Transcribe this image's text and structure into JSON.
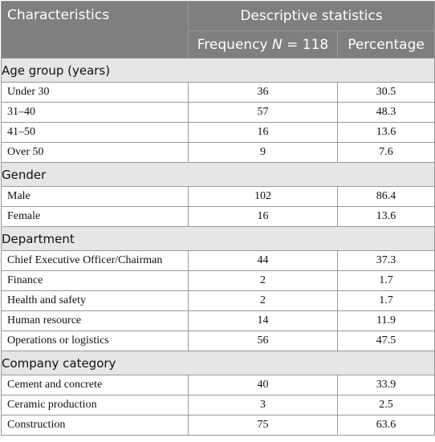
{
  "header": {
    "characteristics": "Characteristics",
    "descriptive": "Descriptive statistics",
    "frequency_prefix": "Frequency ",
    "frequency_n": "N",
    "frequency_suffix": " = 118",
    "percentage": "Percentage"
  },
  "sections": [
    {
      "title": "Age group (years)",
      "rows": [
        {
          "label": "Under 30",
          "freq": "36",
          "pct": "30.5"
        },
        {
          "label": "31–40",
          "freq": "57",
          "pct": "48.3"
        },
        {
          "label": "41–50",
          "freq": "16",
          "pct": "13.6"
        },
        {
          "label": "Over 50",
          "freq": "9",
          "pct": "7.6"
        }
      ]
    },
    {
      "title": "Gender",
      "rows": [
        {
          "label": "Male",
          "freq": "102",
          "pct": "86.4"
        },
        {
          "label": "Female",
          "freq": "16",
          "pct": "13.6"
        }
      ]
    },
    {
      "title": "Department",
      "rows": [
        {
          "label": "Chief Executive Officer/Chairman",
          "freq": "44",
          "pct": "37.3"
        },
        {
          "label": "Finance",
          "freq": "2",
          "pct": "1.7"
        },
        {
          "label": "Health and safety",
          "freq": "2",
          "pct": "1.7"
        },
        {
          "label": "Human resource",
          "freq": "14",
          "pct": "11.9"
        },
        {
          "label": "Operations or logistics",
          "freq": "56",
          "pct": "47.5"
        }
      ]
    },
    {
      "title": "Company category",
      "rows": [
        {
          "label": "Cement and concrete",
          "freq": "40",
          "pct": "33.9"
        },
        {
          "label": "Ceramic production",
          "freq": "3",
          "pct": "2.5"
        },
        {
          "label": "Construction",
          "freq": "75",
          "pct": "63.6"
        }
      ]
    }
  ]
}
